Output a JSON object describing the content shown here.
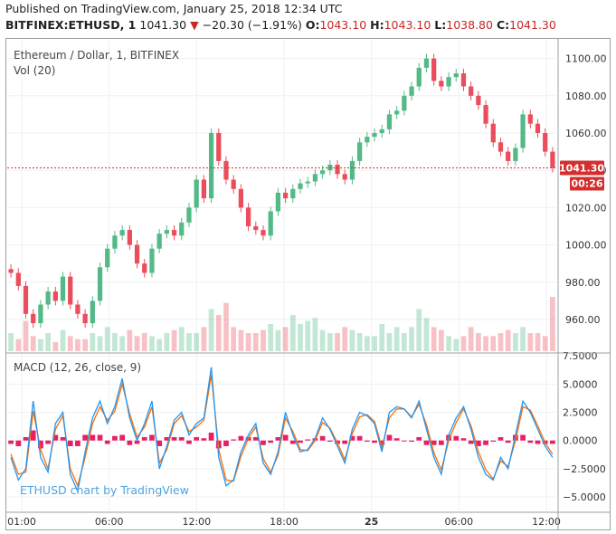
{
  "header": {
    "published": "Published on TradingView.com, January 25, 2018 12:34 UTC",
    "symbol": "BITFINEX:ETHUSD, 1",
    "last": "1041.30",
    "change_arrow": "▼",
    "change": "−20.30 (−1.91%)",
    "open_label": "O:",
    "open": "1043.10",
    "high_label": "H:",
    "high": "1043.10",
    "low_label": "L:",
    "low": "1038.80",
    "close_label": "C:",
    "close": "1041.30"
  },
  "price_pane": {
    "title": "Ethereum / Dollar, 1, BITFINEX",
    "volume_label": "Vol (20)",
    "last_price_tag": "1041.30",
    "countdown_tag": "00:26"
  },
  "macd_pane": {
    "title": "MACD (12, 26, close, 9)"
  },
  "watermark": "ETHUSD chart by TradingView",
  "colors": {
    "up": "#53b987",
    "down": "#eb4d5c",
    "macd_line": "#2196f3",
    "signal_line": "#ff6d00",
    "histogram": "#e91e63",
    "last_price": "#d32f2f"
  },
  "chart_data": [
    {
      "type": "candlestick",
      "title": "Ethereum / Dollar, 1, BITFINEX",
      "x_ticks": [
        "01:00",
        "06:00",
        "12:00",
        "18:00",
        "25",
        "06:00",
        "12:00"
      ],
      "y_ticks": [
        "960.00",
        "980.00",
        "1000.00",
        "1020.00",
        "1040.00",
        "1060.00",
        "1080.00",
        "1100.00"
      ],
      "ylim": [
        943,
        1110
      ],
      "last_price": 1041.3,
      "series": [
        {
          "name": "ETHUSD",
          "x": [
            "00:00",
            "00:30",
            "01:00",
            "01:30",
            "02:00",
            "02:30",
            "03:00",
            "03:30",
            "04:00",
            "04:30",
            "05:00",
            "05:30",
            "06:00",
            "06:30",
            "07:00",
            "07:30",
            "08:00",
            "08:30",
            "09:00",
            "09:30",
            "10:00",
            "10:30",
            "11:00",
            "11:30",
            "12:00",
            "12:30",
            "13:00",
            "13:30",
            "14:00",
            "14:30",
            "15:00",
            "15:30",
            "16:00",
            "16:30",
            "17:00",
            "17:30",
            "18:00",
            "18:30",
            "19:00",
            "19:30",
            "20:00",
            "20:30",
            "21:00",
            "21:30",
            "22:00",
            "22:30",
            "23:00",
            "23:30",
            "00:00",
            "00:30",
            "01:00",
            "01:30",
            "02:00",
            "02:30",
            "03:00",
            "03:30",
            "04:00",
            "04:30",
            "05:00",
            "05:30",
            "06:00",
            "06:30",
            "07:00",
            "07:30",
            "08:00",
            "08:30",
            "09:00",
            "09:30",
            "10:00",
            "10:30",
            "11:00",
            "11:30",
            "12:00",
            "12:30"
          ],
          "values": [
            985,
            978,
            963,
            958,
            968,
            975,
            970,
            983,
            968,
            963,
            958,
            970,
            988,
            998,
            1005,
            1008,
            1000,
            990,
            985,
            998,
            1006,
            1008,
            1005,
            1012,
            1020,
            1035,
            1025,
            1060,
            1045,
            1035,
            1030,
            1020,
            1010,
            1008,
            1005,
            1018,
            1028,
            1025,
            1030,
            1033,
            1034,
            1038,
            1040,
            1043,
            1038,
            1035,
            1045,
            1055,
            1058,
            1060,
            1062,
            1070,
            1072,
            1080,
            1085,
            1095,
            1100,
            1088,
            1085,
            1090,
            1092,
            1085,
            1080,
            1075,
            1065,
            1055,
            1050,
            1045,
            1052,
            1070,
            1065,
            1060,
            1050,
            1041.3
          ]
        }
      ]
    },
    {
      "type": "bar",
      "title": "Vol (20)",
      "values": [
        6,
        4,
        10,
        5,
        4,
        6,
        3,
        7,
        5,
        4,
        4,
        6,
        5,
        8,
        6,
        5,
        7,
        5,
        6,
        5,
        4,
        6,
        7,
        8,
        6,
        6,
        8,
        14,
        12,
        16,
        8,
        7,
        6,
        6,
        7,
        9,
        7,
        8,
        12,
        9,
        10,
        11,
        7,
        6,
        6,
        8,
        7,
        6,
        5,
        5,
        9,
        6,
        8,
        6,
        8,
        14,
        11,
        8,
        7,
        5,
        4,
        5,
        8,
        6,
        5,
        5,
        6,
        7,
        6,
        8,
        6,
        6,
        5,
        18
      ]
    },
    {
      "type": "line",
      "title": "MACD (12, 26, close, 9)",
      "y_ticks": [
        "−5.0000",
        "−2.5000",
        "0.0000",
        "2.5000",
        "5.0000",
        "7.5000"
      ],
      "ylim": [
        -6.2,
        7.6
      ],
      "series": [
        {
          "name": "MACD",
          "values": [
            -1.5,
            -3.5,
            -2.5,
            3.5,
            -1.5,
            -2.8,
            1.5,
            2.5,
            -3,
            -4.5,
            -1,
            2,
            3.5,
            1.5,
            3,
            5.5,
            2,
            0,
            1.5,
            3.5,
            -2.5,
            -0.5,
            1.8,
            2.5,
            0.5,
            1.5,
            2,
            6.5,
            -1.5,
            -4,
            -3.5,
            -1,
            0.5,
            1.5,
            -2,
            -3,
            -1,
            2.5,
            0.5,
            -1,
            -0.8,
            0.2,
            2,
            1,
            -0.5,
            -2,
            1,
            2.5,
            2.2,
            1.5,
            -1,
            2.5,
            3,
            2.8,
            2,
            3.5,
            1,
            -1.5,
            -3,
            0.5,
            2,
            3,
            1,
            -1.5,
            -3,
            -3.5,
            -1.5,
            -2.5,
            0.5,
            3.5,
            2.5,
            1,
            -0.5,
            -1.5
          ]
        },
        {
          "name": "Signal",
          "values": [
            -1.2,
            -3,
            -2.8,
            2.6,
            -0.8,
            -2.5,
            1,
            2.2,
            -2.5,
            -4,
            -1.5,
            1.5,
            3,
            1.8,
            2.6,
            5,
            2.4,
            0.3,
            1.2,
            3,
            -2,
            -0.8,
            1.5,
            2.2,
            0.8,
            1.2,
            1.8,
            5.8,
            -0.8,
            -3.5,
            -3.6,
            -1.4,
            0.2,
            1.2,
            -1.6,
            -2.8,
            -1.3,
            2,
            0.8,
            -0.8,
            -0.9,
            0,
            1.6,
            1.1,
            -0.2,
            -1.7,
            0.6,
            2.1,
            2.3,
            1.7,
            -0.6,
            2,
            2.8,
            2.8,
            2.1,
            3.2,
            1.4,
            -1.1,
            -2.6,
            0,
            1.6,
            2.8,
            1.3,
            -1,
            -2.6,
            -3.4,
            -1.8,
            -2.3,
            0,
            3,
            2.7,
            1.3,
            -0.2,
            -1.2
          ]
        }
      ]
    }
  ]
}
